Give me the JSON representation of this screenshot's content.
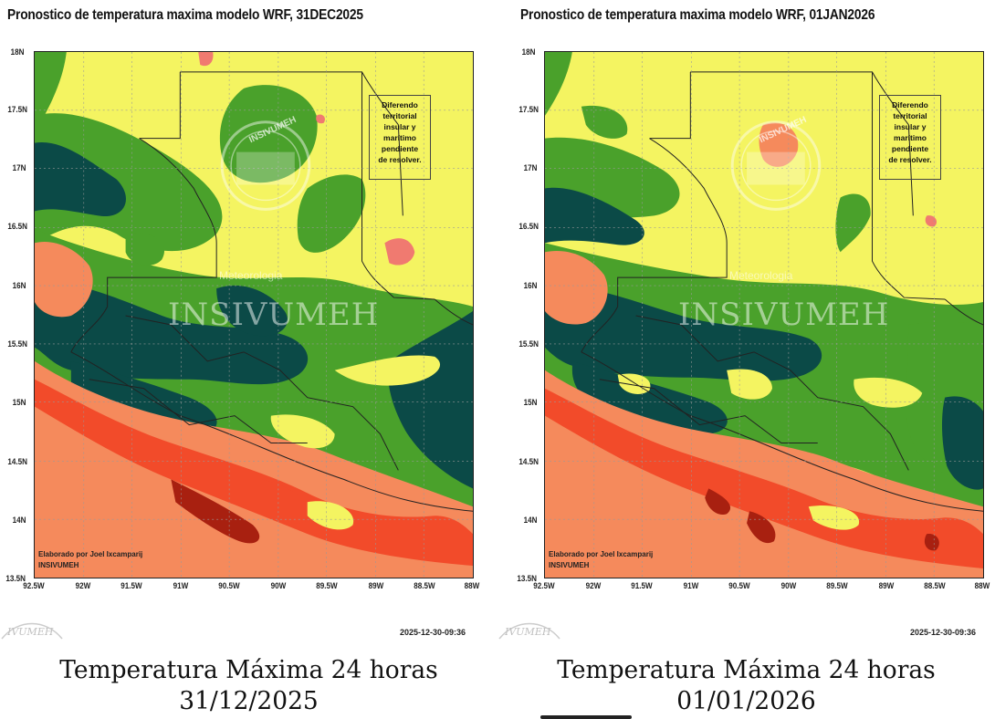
{
  "panels": [
    {
      "title": "Pronostico de temperatura maxima modelo WRF, 31DEC2025",
      "timestamp": "2025-12-30-09:36",
      "caption_line1": "Temperatura Máxima 24 horas",
      "caption_line2": "31/12/2025",
      "credit_line1": "Elaborado  por Joel Ixcamparij",
      "credit_line2": "INSIVUMEH",
      "watermark_text": "INSIVUMEH",
      "watermark_small": "Meteorologia",
      "seal_text": "INSIVUMEH",
      "legend_lines": [
        "Diferendo",
        "territorial",
        "insular y",
        "marítimo",
        "pendiente",
        "de resolver."
      ],
      "bottom_logo_text": "IVUMEH"
    },
    {
      "title": "Pronostico de temperatura maxima modelo WRF, 01JAN2026",
      "timestamp": "2025-12-30-09:36",
      "caption_line1": "Temperatura Máxima 24 horas",
      "caption_line2": "01/01/2026",
      "credit_line1": "Elaborado  por Joel Ixcamparij",
      "credit_line2": "INSIVUMEH",
      "watermark_text": "INSIVUMEH",
      "watermark_small": "Meteorologia",
      "seal_text": "INSIVUMEH",
      "legend_lines": [
        "Diferendo",
        "territorial",
        "insular y",
        "marítimo",
        "pendiente",
        "de resolver."
      ],
      "bottom_logo_text": "IVUMEH"
    }
  ],
  "axes": {
    "lat_labels": [
      "18N",
      "17.5N",
      "17N",
      "16.5N",
      "16N",
      "15.5N",
      "15N",
      "14.5N",
      "14N",
      "13.5N"
    ],
    "lon_labels": [
      "92.5W",
      "92W",
      "91.5W",
      "91W",
      "90.5W",
      "90W",
      "89.5W",
      "89W",
      "88.5W",
      "88W"
    ]
  },
  "colors": {
    "yellow": "#f4f461",
    "light_green": "#4aa12b",
    "mid_green": "#2f8a22",
    "dark_teal": "#0b4a47",
    "salmon": "#f58a5c",
    "orange_red": "#f24b2a",
    "dark_red": "#a82010",
    "pink": "#f07a70"
  }
}
